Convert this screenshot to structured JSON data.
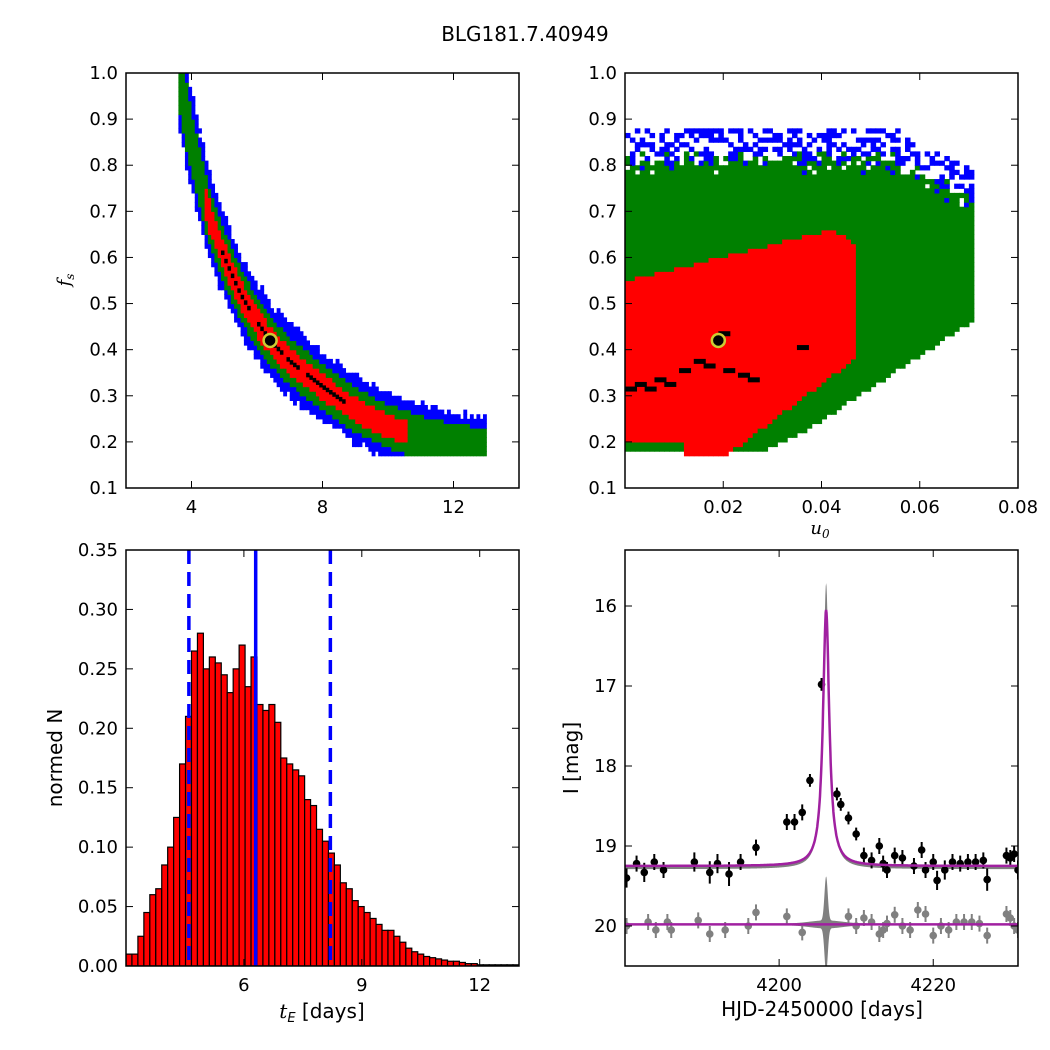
{
  "title": "BLG181.7.40949",
  "colors": {
    "c1": "#ff0000",
    "c2": "#008000",
    "c3": "#0000ff",
    "best": "#000000",
    "marker": "#cccc33",
    "model": "#a020a0",
    "resid": "#808080"
  },
  "chart_data": [
    {
      "type": "heatmap",
      "panel": "top-left",
      "xlabel": "",
      "ylabel": "f_s",
      "xlim": [
        2,
        14
      ],
      "ylim": [
        0.1,
        1.0
      ],
      "xticks": [
        4,
        8,
        12
      ],
      "yticks": [
        0.1,
        0.2,
        0.3,
        0.4,
        0.5,
        0.6,
        0.7,
        0.8,
        0.9,
        1.0
      ],
      "levels": [
        "1sigma (red)",
        "2sigma (green)",
        "3sigma (blue)",
        "best (black)"
      ],
      "ridge": [
        [
          3.65,
          0.98
        ],
        [
          4.0,
          0.85
        ],
        [
          4.5,
          0.7
        ],
        [
          5.0,
          0.6
        ],
        [
          5.5,
          0.52
        ],
        [
          6.0,
          0.46
        ],
        [
          6.4,
          0.42
        ],
        [
          7.0,
          0.375
        ],
        [
          8.0,
          0.32
        ],
        [
          9.0,
          0.27
        ],
        [
          10.0,
          0.235
        ],
        [
          11.0,
          0.21
        ],
        [
          12.0,
          0.195
        ],
        [
          13.0,
          0.185
        ]
      ],
      "best_fit": {
        "t_E": 6.4,
        "f_s": 0.42
      }
    },
    {
      "type": "heatmap",
      "panel": "top-right",
      "xlabel": "u_0",
      "ylabel": "",
      "xlim": [
        0.0,
        0.08
      ],
      "ylim": [
        0.1,
        1.0
      ],
      "xticks": [
        0.02,
        0.04,
        0.06,
        0.08
      ],
      "yticks": [
        0.1,
        0.2,
        0.3,
        0.4,
        0.5,
        0.6,
        0.7,
        0.8,
        0.9,
        1.0
      ],
      "best_fit": {
        "u_0": 0.019,
        "f_s": 0.42
      }
    },
    {
      "type": "bar",
      "panel": "bottom-left",
      "xlabel": "t_E [days]",
      "ylabel": "normed N",
      "xlim": [
        3.0,
        13.0
      ],
      "ylim": [
        0.0,
        0.35
      ],
      "xticks": [
        6,
        9,
        12
      ],
      "yticks": [
        0.0,
        0.05,
        0.1,
        0.15,
        0.2,
        0.25,
        0.3,
        0.35
      ],
      "bin_start": 3.0,
      "bin_width": 0.1515,
      "values": [
        0.01,
        0.01,
        0.025,
        0.045,
        0.06,
        0.065,
        0.085,
        0.1,
        0.125,
        0.17,
        0.21,
        0.265,
        0.28,
        0.25,
        0.26,
        0.255,
        0.245,
        0.23,
        0.25,
        0.27,
        0.235,
        0.26,
        0.22,
        0.215,
        0.22,
        0.205,
        0.175,
        0.17,
        0.165,
        0.16,
        0.14,
        0.135,
        0.115,
        0.105,
        0.095,
        0.085,
        0.07,
        0.065,
        0.055,
        0.05,
        0.045,
        0.04,
        0.035,
        0.03,
        0.03,
        0.025,
        0.02,
        0.015,
        0.012,
        0.01,
        0.008,
        0.007,
        0.006,
        0.005,
        0.004,
        0.004,
        0.003,
        0.002,
        0.002,
        0.001,
        0.001,
        0.001,
        0.001,
        0.001,
        0.001,
        0.001
      ],
      "median": 6.3,
      "lower": 4.6,
      "upper": 8.2
    },
    {
      "type": "scatter",
      "panel": "bottom-right",
      "xlabel": "HJD-2450000 [days]",
      "ylabel": "I [mag]",
      "xlim": [
        4180.0,
        4231.0
      ],
      "ylim": [
        20.5,
        15.3
      ],
      "xticks": [
        4200,
        4220
      ],
      "yticks": [
        16,
        17,
        18,
        19,
        20
      ],
      "model": {
        "t0": 4206.1,
        "base": 19.25,
        "peak": 16.05,
        "resid_level": 19.98
      },
      "obs": [
        [
          4180.2,
          19.4,
          0.12
        ],
        [
          4181.5,
          19.22,
          0.1
        ],
        [
          4182.5,
          19.33,
          0.12
        ],
        [
          4183.8,
          19.2,
          0.1
        ],
        [
          4185.0,
          19.3,
          0.1
        ],
        [
          4189.0,
          19.2,
          0.12
        ],
        [
          4191.0,
          19.33,
          0.14
        ],
        [
          4192.0,
          19.22,
          0.12
        ],
        [
          4193.5,
          19.35,
          0.15
        ],
        [
          4195.0,
          19.2,
          0.1
        ],
        [
          4197.0,
          19.02,
          0.1
        ],
        [
          4201.0,
          18.7,
          0.1
        ],
        [
          4202.0,
          18.7,
          0.1
        ],
        [
          4203.0,
          18.58,
          0.1
        ],
        [
          4204.0,
          18.18,
          0.08
        ],
        [
          4205.5,
          16.98,
          0.08
        ],
        [
          4207.5,
          18.35,
          0.08
        ],
        [
          4208.0,
          18.48,
          0.08
        ],
        [
          4209.0,
          18.65,
          0.08
        ],
        [
          4210.0,
          18.85,
          0.08
        ],
        [
          4211.0,
          19.12,
          0.1
        ],
        [
          4212.0,
          19.18,
          0.1
        ],
        [
          4213.0,
          19.0,
          0.1
        ],
        [
          4213.5,
          19.22,
          0.1
        ],
        [
          4214.0,
          19.3,
          0.1
        ],
        [
          4215.0,
          19.12,
          0.1
        ],
        [
          4216.0,
          19.15,
          0.1
        ],
        [
          4217.5,
          19.25,
          0.1
        ],
        [
          4218.5,
          19.05,
          0.1
        ],
        [
          4219.0,
          19.3,
          0.1
        ],
        [
          4220.0,
          19.2,
          0.1
        ],
        [
          4220.5,
          19.43,
          0.12
        ],
        [
          4221.5,
          19.3,
          0.12
        ],
        [
          4222.5,
          19.2,
          0.1
        ],
        [
          4223.5,
          19.22,
          0.1
        ],
        [
          4224.5,
          19.2,
          0.1
        ],
        [
          4225.5,
          19.2,
          0.1
        ],
        [
          4226.5,
          19.18,
          0.1
        ],
        [
          4227.0,
          19.42,
          0.14
        ],
        [
          4229.5,
          19.12,
          0.1
        ],
        [
          4230.0,
          19.15,
          0.1
        ],
        [
          4230.5,
          19.1,
          0.1
        ],
        [
          4231.0,
          19.3,
          0.12
        ],
        [
          4231.5,
          19.4,
          0.14
        ],
        [
          4232.0,
          19.22,
          0.1
        ],
        [
          4232.5,
          18.98,
          0.1
        ]
      ],
      "resid": [
        [
          4180.2,
          20.0,
          0.1
        ],
        [
          4183.0,
          19.95,
          0.1
        ],
        [
          4184.0,
          20.05,
          0.1
        ],
        [
          4185.5,
          19.95,
          0.1
        ],
        [
          4186.0,
          20.05,
          0.1
        ],
        [
          4189.5,
          19.93,
          0.1
        ],
        [
          4191.0,
          20.1,
          0.1
        ],
        [
          4193.0,
          20.05,
          0.1
        ],
        [
          4196.0,
          20.0,
          0.1
        ],
        [
          4197.0,
          19.83,
          0.1
        ],
        [
          4201.0,
          19.88,
          0.1
        ],
        [
          4203.0,
          20.08,
          0.1
        ],
        [
          4209.0,
          19.88,
          0.1
        ],
        [
          4210.0,
          20.0,
          0.1
        ],
        [
          4211.0,
          19.9,
          0.1
        ],
        [
          4212.0,
          19.95,
          0.1
        ],
        [
          4213.0,
          20.1,
          0.1
        ],
        [
          4213.5,
          20.05,
          0.1
        ],
        [
          4214.0,
          19.97,
          0.1
        ],
        [
          4215.0,
          19.86,
          0.1
        ],
        [
          4216.0,
          20.0,
          0.1
        ],
        [
          4217.0,
          20.05,
          0.1
        ],
        [
          4218.0,
          19.8,
          0.1
        ],
        [
          4219.0,
          19.85,
          0.1
        ],
        [
          4220.0,
          20.12,
          0.1
        ],
        [
          4221.0,
          20.0,
          0.1
        ],
        [
          4222.0,
          20.05,
          0.1
        ],
        [
          4223.0,
          19.95,
          0.1
        ],
        [
          4224.0,
          19.95,
          0.1
        ],
        [
          4225.0,
          19.95,
          0.1
        ],
        [
          4226.0,
          19.97,
          0.1
        ],
        [
          4227.0,
          20.12,
          0.1
        ],
        [
          4229.5,
          19.85,
          0.1
        ],
        [
          4230.0,
          19.9,
          0.1
        ],
        [
          4230.5,
          20.0,
          0.1
        ],
        [
          4231.0,
          20.05,
          0.1
        ],
        [
          4232.0,
          19.88,
          0.1
        ],
        [
          4232.5,
          19.7,
          0.1
        ]
      ]
    }
  ]
}
